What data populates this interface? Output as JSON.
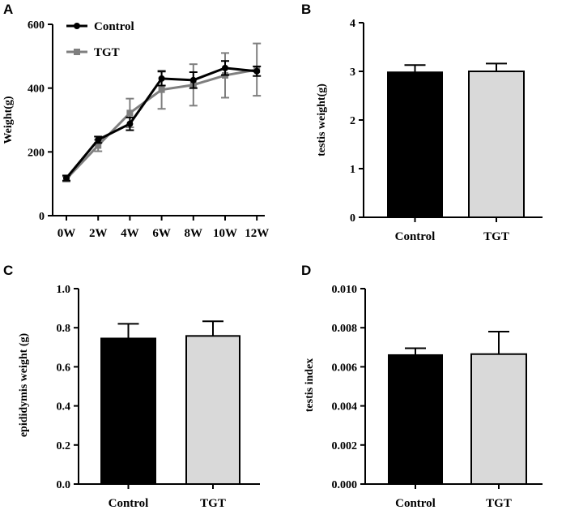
{
  "colors": {
    "control": "#000000",
    "tgt_line": "#7f7f7f",
    "tgt_bar": "#d9d9d9",
    "axis": "#000000"
  },
  "chart_data": [
    {
      "id": "A",
      "panel_label": "A",
      "type": "line",
      "title": "",
      "xlabel": "",
      "ylabel": "Weight(g)",
      "categories": [
        "0W",
        "2W",
        "4W",
        "6W",
        "8W",
        "10W",
        "12W"
      ],
      "ylim": [
        0,
        600
      ],
      "yticks": [
        "0",
        "200",
        "400",
        "600"
      ],
      "legend_position": "top-left",
      "series": [
        {
          "name": "Control",
          "marker": "circle",
          "values": [
            118,
            238,
            288,
            430,
            425,
            463,
            453
          ],
          "errors": [
            8,
            10,
            20,
            22,
            25,
            22,
            15
          ]
        },
        {
          "name": "TGT",
          "marker": "square",
          "values": [
            115,
            220,
            322,
            395,
            410,
            440,
            458
          ],
          "errors": [
            8,
            18,
            45,
            60,
            65,
            70,
            82
          ]
        }
      ]
    },
    {
      "id": "B",
      "panel_label": "B",
      "type": "bar",
      "xlabel": "",
      "ylabel": "testis weight(g)",
      "categories": [
        "Control",
        "TGT"
      ],
      "values": [
        2.98,
        3.0
      ],
      "errors": [
        0.15,
        0.16
      ],
      "ylim": [
        0,
        4
      ],
      "yticks": [
        "0",
        "1",
        "2",
        "3",
        "4"
      ]
    },
    {
      "id": "C",
      "panel_label": "C",
      "type": "bar",
      "xlabel": "",
      "ylabel": "epididymis weight (g)",
      "categories": [
        "Control",
        "TGT"
      ],
      "values": [
        0.745,
        0.758
      ],
      "errors": [
        0.075,
        0.075
      ],
      "ylim": [
        0,
        1.0
      ],
      "yticks": [
        "0.0",
        "0.2",
        "0.4",
        "0.6",
        "0.8",
        "1.0"
      ]
    },
    {
      "id": "D",
      "panel_label": "D",
      "type": "bar",
      "xlabel": "",
      "ylabel": "testis index",
      "categories": [
        "Control",
        "TGT"
      ],
      "values": [
        0.0066,
        0.00665
      ],
      "errors": [
        0.00035,
        0.00115
      ],
      "ylim": [
        0,
        0.01
      ],
      "yticks": [
        "0.000",
        "0.002",
        "0.004",
        "0.006",
        "0.008",
        "0.010"
      ]
    }
  ]
}
